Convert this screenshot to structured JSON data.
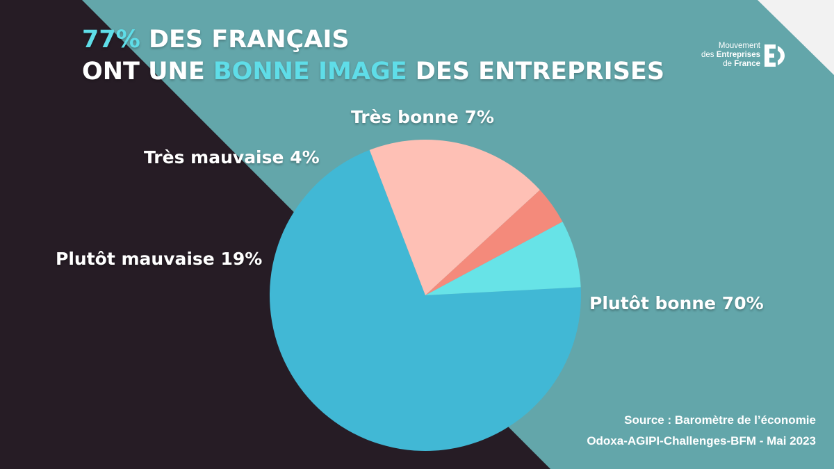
{
  "header": {
    "title_line1_highlight": "77%",
    "title_line1_rest": " DES FRANÇAIS",
    "title_line2_a": "ONT UNE ",
    "title_line2_highlight": "BONNE IMAGE",
    "title_line2_b": " DES ENTREPRISES"
  },
  "logo": {
    "line1": "Mouvement",
    "line2_a": "des ",
    "line2_b": "Entreprises",
    "line3_a": "de ",
    "line3_b": "France",
    "icon": "medef-e-icon"
  },
  "colors": {
    "background_teal": "#63a6aa",
    "background_dark": "#261c25",
    "corner_light": "#f2f2f2",
    "accent": "#5fdde8"
  },
  "chart_data": {
    "type": "pie",
    "title": "77% DES FRANÇAIS ONT UNE BONNE IMAGE DES ENTREPRISES",
    "slices": [
      {
        "label": "Plutôt bonne",
        "value": 70,
        "display": "Plutôt bonne 70%",
        "color": "#41b8d5"
      },
      {
        "label": "Plutôt mauvaise",
        "value": 19,
        "display": "Plutôt mauvaise 19%",
        "color": "#fec0b5"
      },
      {
        "label": "Très mauvaise",
        "value": 4,
        "display": "Très mauvaise 4%",
        "color": "#f48a7b"
      },
      {
        "label": "Très bonne",
        "value": 7,
        "display": "Très bonne 7%",
        "color": "#67e3e7"
      }
    ]
  },
  "source": {
    "line1": "Source : Baromètre de l’économie",
    "line2": "Odoxa-AGIPI-Challenges-BFM - Mai 2023"
  }
}
